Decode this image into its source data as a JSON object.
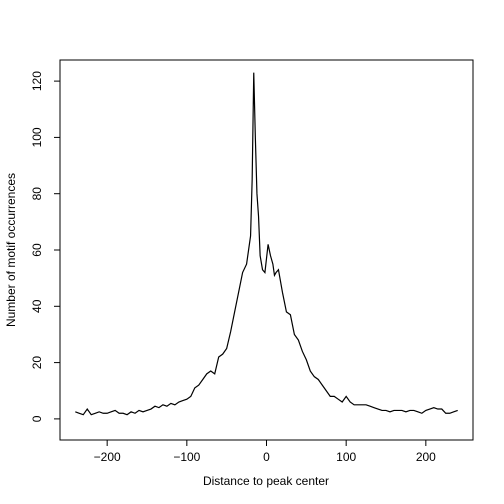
{
  "chart_data": {
    "type": "line",
    "xlabel": "Distance to peak center",
    "ylabel": "Number of motif occurrences",
    "x": [
      -240,
      -235,
      -230,
      -225,
      -220,
      -215,
      -210,
      -205,
      -200,
      -195,
      -190,
      -185,
      -180,
      -175,
      -170,
      -165,
      -160,
      -155,
      -150,
      -145,
      -140,
      -135,
      -130,
      -125,
      -120,
      -115,
      -110,
      -105,
      -100,
      -95,
      -90,
      -85,
      -80,
      -75,
      -70,
      -65,
      -60,
      -55,
      -50,
      -45,
      -40,
      -35,
      -30,
      -25,
      -20,
      -18,
      -16,
      -14,
      -12,
      -10,
      -8,
      -5,
      -2,
      0,
      2,
      5,
      8,
      10,
      12,
      15,
      20,
      25,
      30,
      35,
      40,
      45,
      50,
      55,
      60,
      65,
      70,
      75,
      80,
      85,
      90,
      95,
      100,
      105,
      110,
      115,
      120,
      125,
      130,
      135,
      140,
      145,
      150,
      155,
      160,
      165,
      170,
      175,
      180,
      185,
      190,
      195,
      200,
      205,
      210,
      215,
      220,
      225,
      230,
      235,
      240
    ],
    "series": [
      {
        "color": "#000000",
        "values": [
          2.5,
          2,
          1.5,
          3.5,
          1.5,
          2,
          2.5,
          2,
          2,
          2.5,
          3,
          2,
          2,
          1.5,
          2.5,
          2,
          3,
          2.5,
          3,
          3.5,
          4.5,
          4,
          5,
          4.5,
          5.5,
          5,
          6,
          6.5,
          7,
          8,
          11,
          12,
          14,
          16,
          17,
          16,
          22,
          23,
          25,
          31,
          38,
          45,
          52,
          55,
          65,
          85,
          123,
          100,
          80,
          72,
          58,
          53,
          52,
          57,
          62,
          58,
          55,
          51,
          52,
          53,
          45,
          38,
          37,
          30,
          28,
          24,
          21,
          17,
          15,
          14,
          12,
          10,
          8,
          8,
          7,
          6,
          8,
          6,
          5,
          5,
          5,
          5,
          4.5,
          4,
          3.5,
          3,
          3,
          2.5,
          3,
          3,
          3,
          2.5,
          3,
          3,
          2.5,
          2,
          3,
          3.5,
          4,
          3.5,
          3.5,
          2,
          2,
          2.5,
          3
        ]
      }
    ],
    "xlim": [
      -259.2,
      259.2
    ],
    "ylim": [
      -7.5,
      127.5
    ],
    "xticks": [
      {
        "value": -200,
        "label": "−200"
      },
      {
        "value": -100,
        "label": "−100"
      },
      0,
      100,
      200
    ],
    "yticks": [
      0,
      20,
      40,
      60,
      80,
      100,
      120
    ]
  }
}
